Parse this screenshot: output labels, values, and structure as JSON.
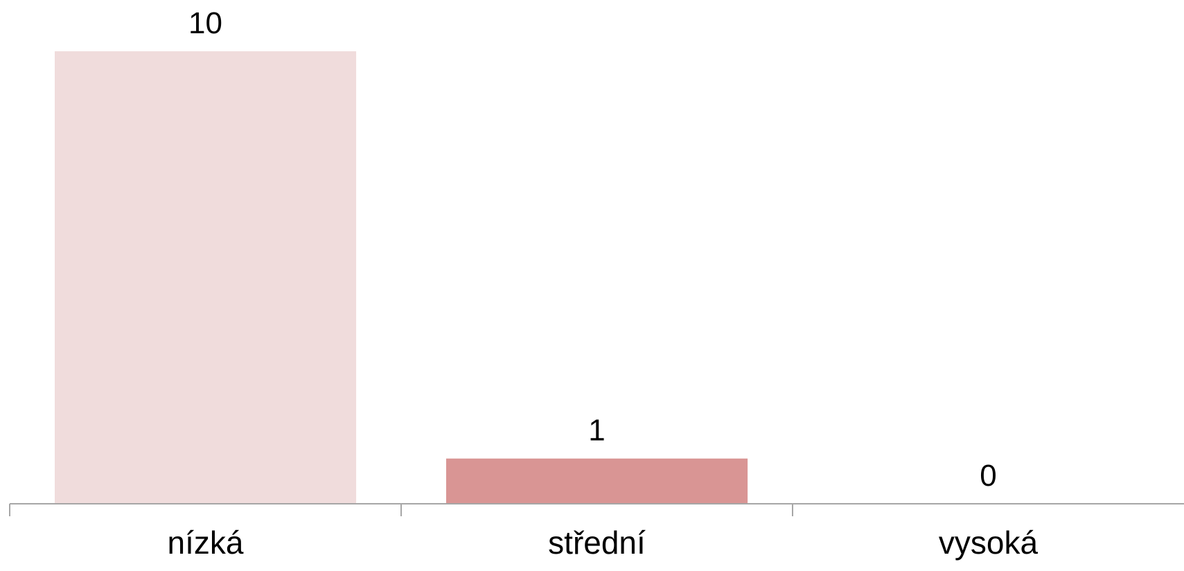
{
  "chart_data": {
    "type": "bar",
    "categories": [
      "nízká",
      "střední",
      "vysoká"
    ],
    "values": [
      10,
      1,
      0
    ],
    "data_labels": [
      "10",
      "1",
      "0"
    ],
    "ylim": [
      0,
      10
    ],
    "grid": false,
    "legend": "none",
    "colors": [
      "#f0dcdc",
      "#d99594",
      "#c0504d"
    ],
    "axis_color": "#a6a6a6"
  }
}
